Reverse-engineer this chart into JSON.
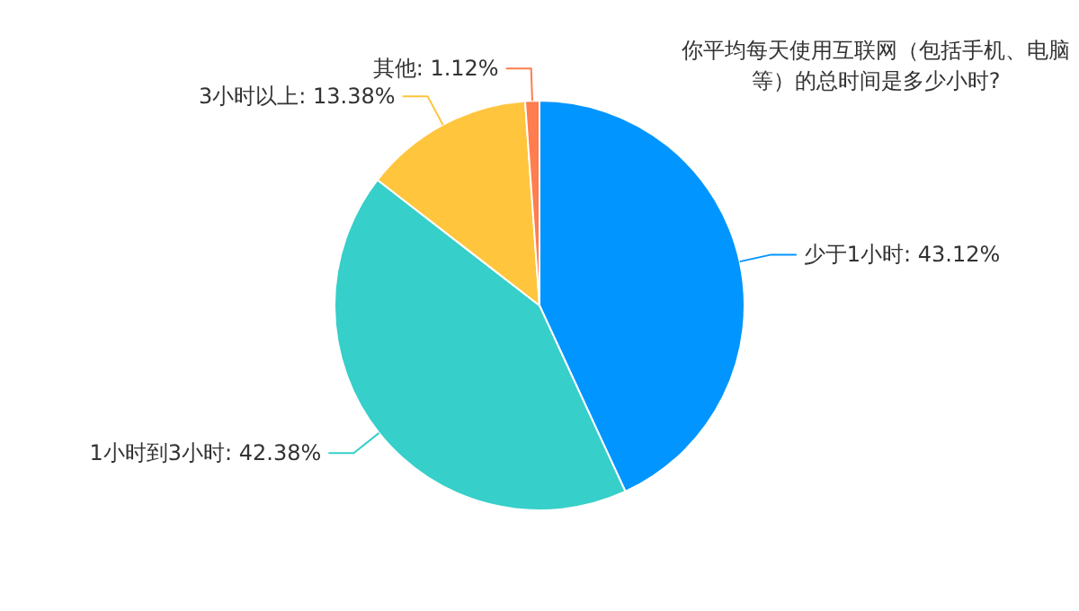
{
  "chart_data": {
    "type": "pie",
    "title": "你平均每天使用互联网（包括手机、电脑等）的总时间是多少小时?",
    "categories": [
      "少于1小时",
      "1小时到3小时",
      "3小时以上",
      "其他"
    ],
    "values": [
      43.12,
      42.38,
      13.38,
      1.12
    ],
    "value_labels": [
      "43.12%",
      "42.38%",
      "13.38%",
      "1.12%"
    ],
    "colors": [
      "#0095ff",
      "#36cfc9",
      "#ffc53d",
      "#ff7d4f"
    ],
    "legend": false
  }
}
